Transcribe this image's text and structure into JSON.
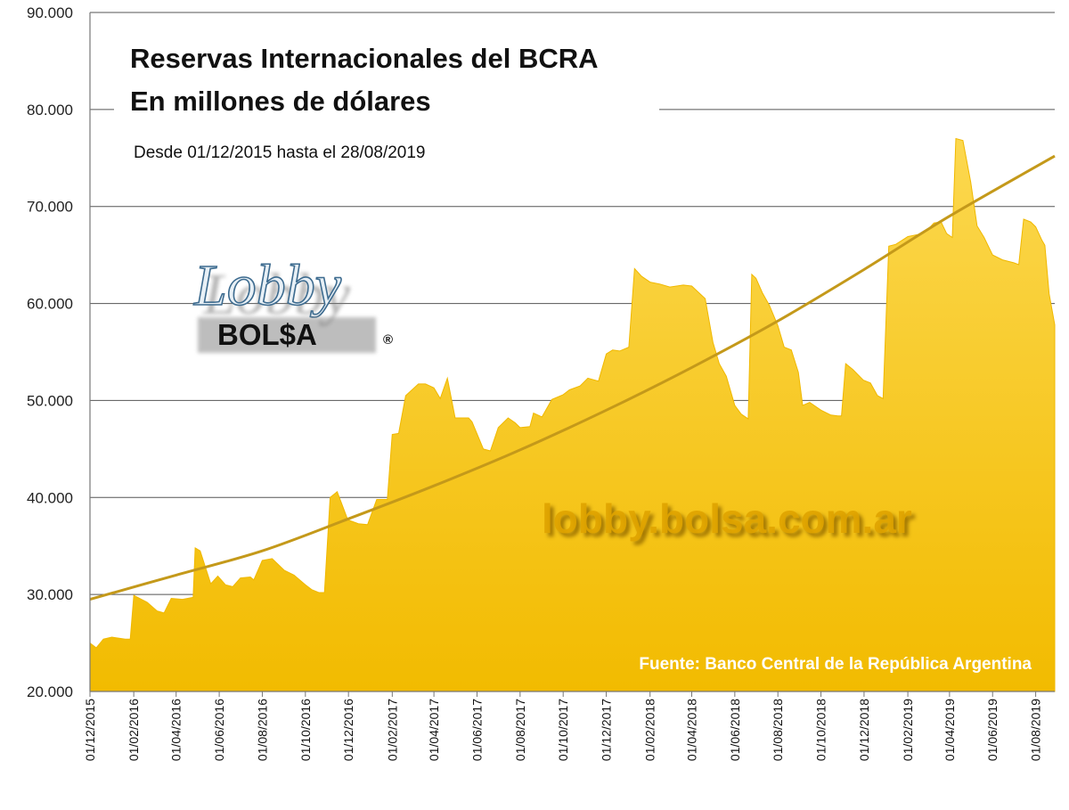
{
  "chart_data": {
    "type": "area",
    "title": "Reservas Internacionales del BCRA",
    "subtitle": "En millones de dólares",
    "period": "Desde 01/12/2015 hasta el 28/08/2019",
    "source": "Fuente: Banco Central de la República Argentina",
    "watermark": "lobby.bolsa.com.ar",
    "logo": {
      "word1": "Lobby",
      "word2": "BOL$A",
      "reg": "®"
    },
    "ylim": [
      20000,
      90000
    ],
    "y_ticks": [
      "20.000",
      "30.000",
      "40.000",
      "50.000",
      "60.000",
      "70.000",
      "80.000",
      "90.000"
    ],
    "y_tick_values": [
      20000,
      30000,
      40000,
      50000,
      60000,
      70000,
      80000,
      90000
    ],
    "x_ticks": [
      "01/12/2015",
      "01/02/2016",
      "01/04/2016",
      "01/06/2016",
      "01/08/2016",
      "01/10/2016",
      "01/12/2016",
      "01/02/2017",
      "01/04/2017",
      "01/06/2017",
      "01/08/2017",
      "01/10/2017",
      "01/12/2017",
      "01/02/2018",
      "01/04/2018",
      "01/06/2018",
      "01/08/2018",
      "01/10/2018",
      "01/12/2018",
      "01/02/2019",
      "01/04/2019",
      "01/06/2019",
      "01/08/2019"
    ],
    "x_range": [
      "2015-12-01",
      "2019-08-28"
    ],
    "grid": true,
    "colors": {
      "area": "#f7c000",
      "area_top": "#fbd54a",
      "trend": "#c4991a"
    },
    "series": [
      {
        "type": "area",
        "x": [
          "2015-12-01",
          "2015-12-10",
          "2015-12-20",
          "2016-01-01",
          "2016-01-20",
          "2016-01-27",
          "2016-02-01",
          "2016-02-20",
          "2016-03-05",
          "2016-03-15",
          "2016-03-25",
          "2016-04-10",
          "2016-04-25",
          "2016-04-28",
          "2016-05-05",
          "2016-05-20",
          "2016-05-30",
          "2016-06-10",
          "2016-06-20",
          "2016-07-01",
          "2016-07-15",
          "2016-07-20",
          "2016-08-01",
          "2016-08-15",
          "2016-09-01",
          "2016-09-15",
          "2016-10-01",
          "2016-10-10",
          "2016-10-20",
          "2016-10-28",
          "2016-11-05",
          "2016-11-15",
          "2016-11-30",
          "2016-12-15",
          "2016-12-28",
          "2017-01-10",
          "2017-01-25",
          "2017-02-01",
          "2017-02-10",
          "2017-02-20",
          "2017-03-10",
          "2017-03-20",
          "2017-04-01",
          "2017-04-10",
          "2017-04-20",
          "2017-05-01",
          "2017-05-20",
          "2017-05-25",
          "2017-06-10",
          "2017-06-20",
          "2017-07-01",
          "2017-07-15",
          "2017-07-25",
          "2017-08-01",
          "2017-08-15",
          "2017-08-20",
          "2017-09-01",
          "2017-09-15",
          "2017-10-01",
          "2017-10-10",
          "2017-10-25",
          "2017-11-05",
          "2017-11-20",
          "2017-12-01",
          "2017-12-10",
          "2017-12-20",
          "2018-01-02",
          "2018-01-10",
          "2018-01-20",
          "2018-02-01",
          "2018-02-15",
          "2018-03-01",
          "2018-03-20",
          "2018-04-01",
          "2018-04-20",
          "2018-05-01",
          "2018-05-10",
          "2018-05-20",
          "2018-06-01",
          "2018-06-10",
          "2018-06-20",
          "2018-06-25",
          "2018-07-01",
          "2018-07-10",
          "2018-07-20",
          "2018-08-01",
          "2018-08-10",
          "2018-08-20",
          "2018-08-30",
          "2018-09-05",
          "2018-09-15",
          "2018-10-01",
          "2018-10-15",
          "2018-10-25",
          "2018-10-30",
          "2018-11-05",
          "2018-11-15",
          "2018-11-30",
          "2018-12-10",
          "2018-12-20",
          "2018-12-28",
          "2019-01-05",
          "2019-01-15",
          "2019-02-01",
          "2019-02-15",
          "2019-03-01",
          "2019-03-10",
          "2019-03-20",
          "2019-03-28",
          "2019-04-05",
          "2019-04-10",
          "2019-04-20",
          "2019-05-01",
          "2019-05-10",
          "2019-05-20",
          "2019-06-01",
          "2019-06-15",
          "2019-07-01",
          "2019-07-08",
          "2019-07-15",
          "2019-07-25",
          "2019-08-01",
          "2019-08-10",
          "2019-08-14",
          "2019-08-20",
          "2019-08-28"
        ],
        "values": [
          25000,
          24500,
          25400,
          25600,
          25400,
          25400,
          29900,
          29200,
          28300,
          28100,
          29600,
          29500,
          29700,
          34800,
          34500,
          31100,
          31900,
          31000,
          30800,
          31700,
          31800,
          31500,
          33500,
          33700,
          32500,
          32000,
          31000,
          30500,
          30200,
          30200,
          40000,
          40600,
          37700,
          37300,
          37200,
          39800,
          39800,
          46500,
          46600,
          50500,
          51700,
          51700,
          51300,
          50200,
          52300,
          48200,
          48200,
          47800,
          45000,
          44800,
          47200,
          48200,
          47700,
          47200,
          47300,
          48700,
          48300,
          50100,
          50600,
          51100,
          51500,
          52300,
          52000,
          54800,
          55200,
          55100,
          55500,
          63600,
          62800,
          62200,
          62000,
          61700,
          61900,
          61800,
          60500,
          56000,
          53800,
          52500,
          49500,
          48600,
          48100,
          63000,
          62600,
          61100,
          59800,
          57700,
          55500,
          55200,
          52900,
          49500,
          49800,
          49000,
          48500,
          48400,
          48400,
          53800,
          53200,
          52100,
          51800,
          50500,
          50200,
          65900,
          66100,
          66900,
          67100,
          67600,
          68300,
          68400,
          67200,
          66800,
          77000,
          76800,
          72500,
          68000,
          66800,
          65000,
          64500,
          64200,
          64000,
          68700,
          68400,
          67900,
          66500,
          66000,
          61000,
          57800
        ]
      },
      {
        "type": "trend",
        "x": [
          "2015-12-01",
          "2016-04-01",
          "2016-08-01",
          "2016-12-01",
          "2017-04-01",
          "2017-08-01",
          "2017-12-01",
          "2018-04-01",
          "2018-08-01",
          "2018-12-01",
          "2019-04-01",
          "2019-08-28"
        ],
        "values": [
          29500,
          32000,
          34500,
          37800,
          41200,
          44900,
          49000,
          53400,
          58200,
          63500,
          69000,
          75200
        ]
      }
    ]
  }
}
